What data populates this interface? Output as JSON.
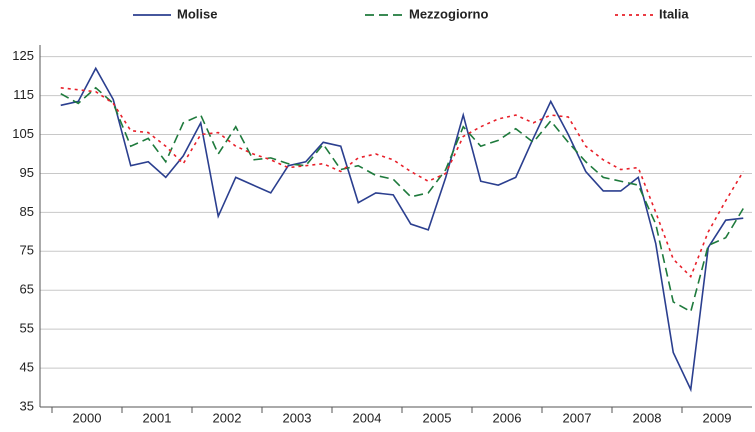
{
  "chart_data": {
    "type": "line",
    "categories": [
      "2000",
      null,
      null,
      null,
      "2001",
      null,
      null,
      null,
      "2002",
      null,
      null,
      null,
      "2003",
      null,
      null,
      null,
      "2004",
      null,
      null,
      null,
      "2005",
      null,
      null,
      null,
      "2006",
      null,
      null,
      null,
      "2007",
      null,
      null,
      null,
      "2008",
      null,
      null,
      null,
      "2009",
      null,
      null,
      null
    ],
    "series": [
      {
        "name": "Molise",
        "color": "#2b3f8f",
        "dash": "none",
        "values": [
          112.5,
          113.5,
          122,
          114,
          97,
          98,
          94,
          99.5,
          108,
          84,
          94,
          92,
          90,
          97,
          98,
          103,
          102,
          87.5,
          90,
          89.5,
          82,
          80.5,
          94,
          110,
          93,
          92,
          94,
          104,
          113.5,
          105,
          95.5,
          90.5,
          90.5,
          94,
          77,
          49,
          39.5,
          76,
          83,
          83.5
        ]
      },
      {
        "name": "Mezzogiorno",
        "color": "#1e7a3c",
        "dash": "9 5",
        "values": [
          115.5,
          113,
          117,
          113,
          102,
          104,
          98,
          108,
          110,
          100,
          107,
          98.5,
          99,
          97.5,
          97,
          102.5,
          96,
          97,
          94.5,
          93.5,
          89,
          90,
          96,
          107,
          102,
          103.5,
          106.5,
          103,
          108.5,
          103,
          98,
          94,
          93,
          92,
          82,
          62,
          59.5,
          76.5,
          78.5,
          86
        ]
      },
      {
        "name": "Italia",
        "color": "#e8202a",
        "dash": "3 4",
        "values": [
          117,
          116.5,
          116,
          113,
          106,
          105.5,
          102,
          97.5,
          105,
          105.5,
          102,
          100,
          98.5,
          96.5,
          97,
          97.5,
          95.5,
          99,
          100,
          98.5,
          95.5,
          93,
          95,
          104.5,
          107,
          109,
          110,
          108,
          110,
          109.5,
          102,
          98.5,
          96,
          96.5,
          85,
          73,
          68.5,
          80,
          88,
          95.5
        ]
      }
    ],
    "ylim": [
      35,
      128
    ],
    "yticks": [
      35,
      45,
      55,
      65,
      75,
      85,
      95,
      105,
      115,
      125
    ],
    "grid": true
  }
}
